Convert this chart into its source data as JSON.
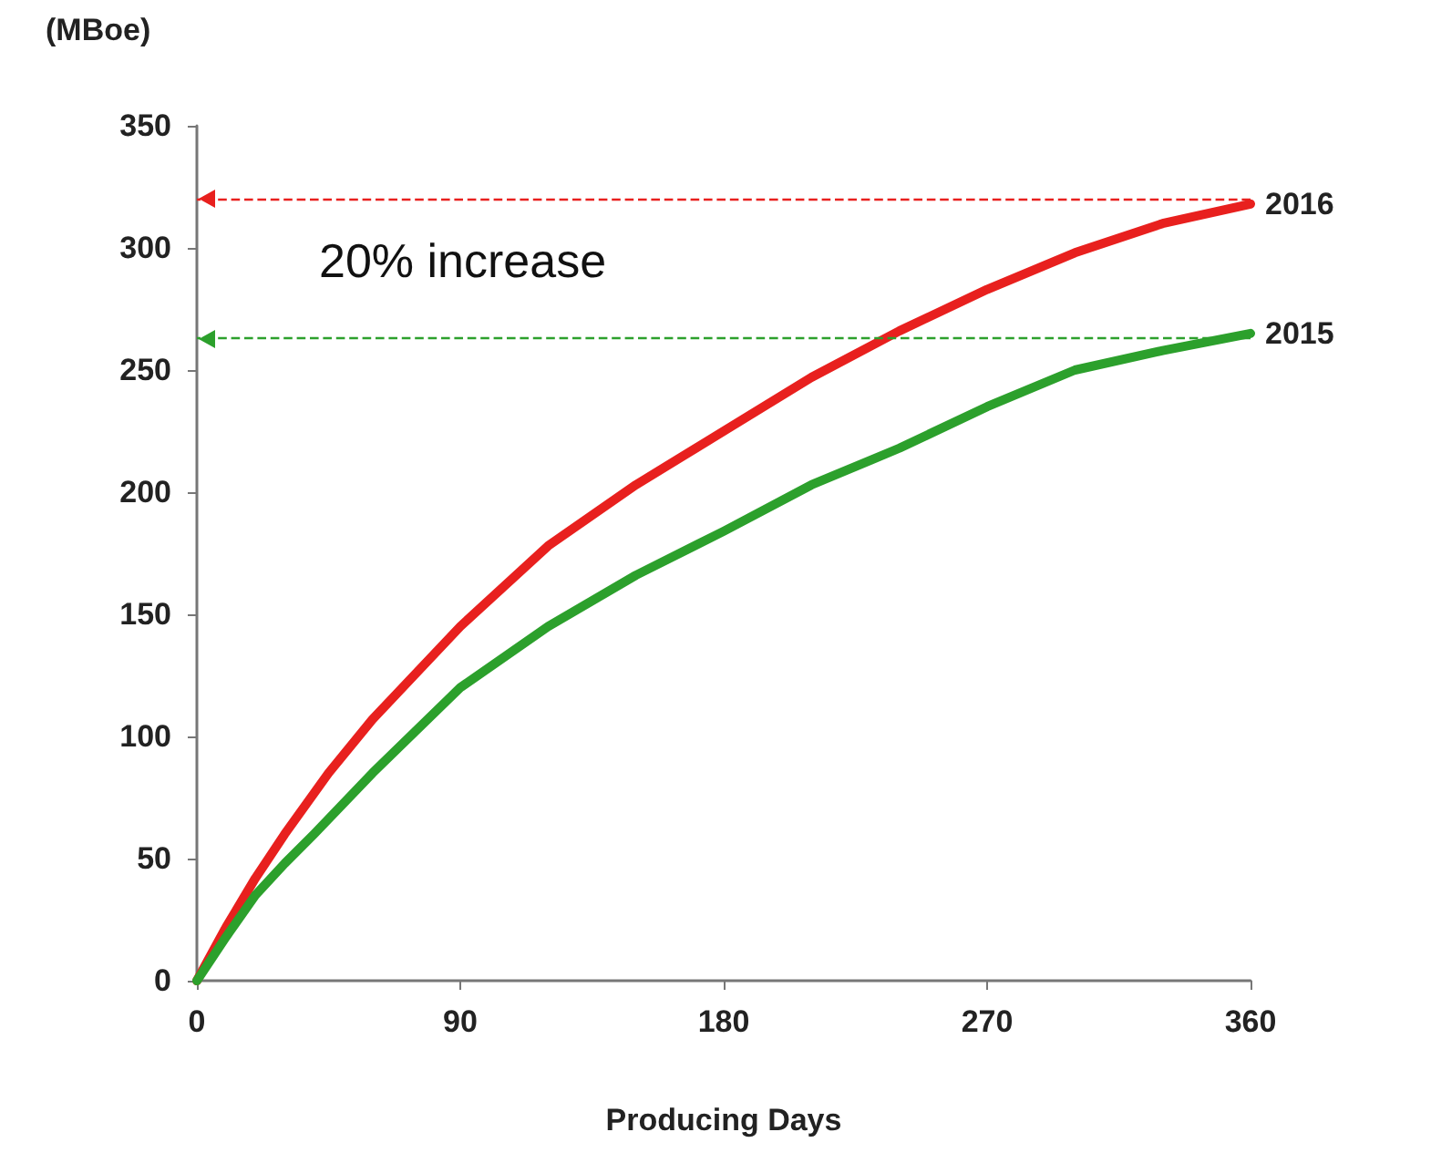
{
  "chart_data": {
    "type": "line",
    "ylabel": "(MBoe)",
    "xlabel": "Producing Days",
    "xlim": [
      0,
      360
    ],
    "xticks": [
      0,
      90,
      180,
      270,
      360
    ],
    "ylim": [
      0,
      350
    ],
    "yticks": [
      0,
      50,
      100,
      150,
      200,
      250,
      300,
      350
    ],
    "grid": false,
    "legend": false,
    "marker": "none",
    "line_style": "solid",
    "series": [
      {
        "name": "2016",
        "color": "#e8201e",
        "x": [
          0,
          10,
          20,
          30,
          45,
          60,
          90,
          120,
          150,
          180,
          210,
          240,
          270,
          300,
          330,
          360
        ],
        "values": [
          0,
          22,
          42,
          60,
          85,
          107,
          145,
          178,
          203,
          225,
          247,
          266,
          283,
          298,
          310,
          318
        ]
      },
      {
        "name": "2015",
        "color": "#2ca02c",
        "x": [
          0,
          10,
          20,
          30,
          40,
          60,
          90,
          120,
          150,
          180,
          210,
          240,
          270,
          300,
          330,
          360
        ],
        "values": [
          0,
          18,
          35,
          48,
          60,
          85,
          120,
          145,
          166,
          184,
          203,
          218,
          235,
          250,
          258,
          265
        ]
      }
    ],
    "ref_lines": [
      {
        "axis": "y",
        "value": 320,
        "color": "#e8201e",
        "line_style": "dashed"
      },
      {
        "axis": "y",
        "value": 263,
        "color": "#2ca02c",
        "line_style": "dashed"
      }
    ],
    "annotations": [
      "20% increase"
    ]
  }
}
